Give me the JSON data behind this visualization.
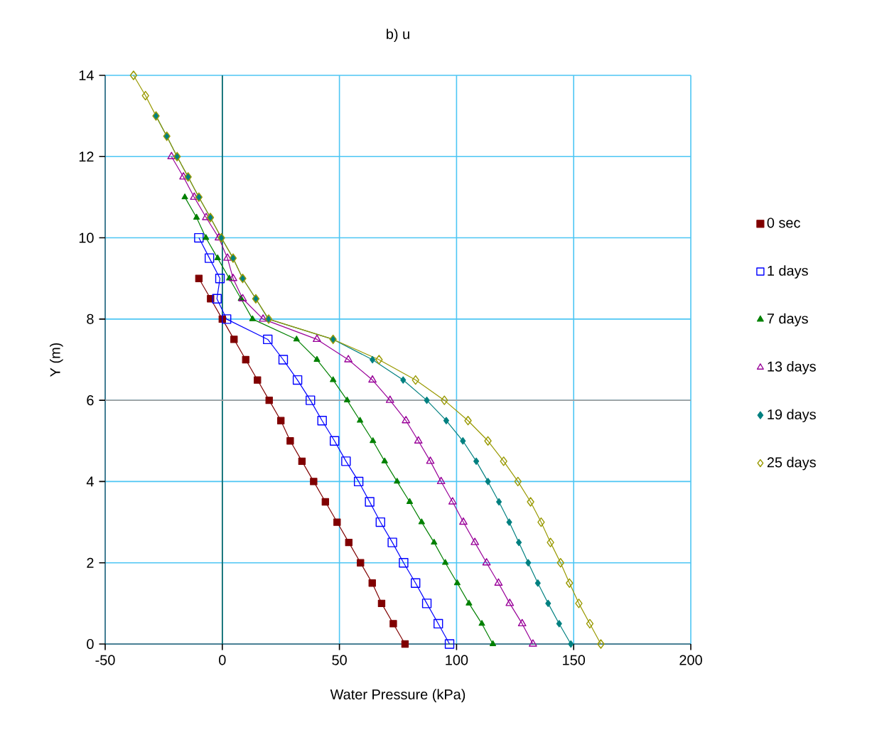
{
  "chart_data": {
    "type": "line",
    "title": "b) u",
    "xlabel": "Water Pressure (kPa)",
    "ylabel": "Y (m)",
    "xlim": [
      -50,
      200
    ],
    "xticks": [
      -50,
      0,
      50,
      100,
      150,
      200
    ],
    "ylim": [
      0,
      14
    ],
    "yticks": [
      0,
      2,
      4,
      6,
      8,
      10,
      12,
      14
    ],
    "grid": true,
    "legend": "right",
    "ref_lines": [
      {
        "axis": "x",
        "value": 0,
        "color": "#006060"
      },
      {
        "axis": "y",
        "value": 6,
        "color": "#a0a0a0"
      }
    ],
    "series": [
      {
        "name": "0 sec",
        "color": "#800000",
        "marker": "square",
        "x": [
          78,
          73,
          68,
          64,
          59,
          54,
          49,
          44,
          39,
          34,
          29,
          25,
          20,
          15,
          10,
          5,
          0,
          -5,
          -10
        ],
        "values": [
          0,
          0.5,
          1,
          1.5,
          2,
          2.5,
          3,
          3.5,
          4,
          4.5,
          5,
          5.5,
          6,
          6.5,
          7,
          7.5,
          8,
          8.5,
          9
        ]
      },
      {
        "name": "1 days",
        "color": "#0000ff",
        "marker": "square",
        "x": [
          97,
          92.2,
          87.3,
          82.5,
          77.4,
          72.6,
          67.5,
          62.9,
          58.2,
          52.8,
          47.9,
          42.6,
          37.6,
          32.1,
          26,
          19.4,
          1.8,
          -2.3,
          -1,
          -5.5,
          -10
        ],
        "values": [
          0,
          0.5,
          1,
          1.5,
          2,
          2.5,
          3,
          3.5,
          4,
          4.5,
          5,
          5.5,
          6,
          6.5,
          7,
          7.5,
          8,
          8.5,
          9,
          9.5,
          10
        ]
      },
      {
        "name": "7 days",
        "color": "#008000",
        "marker": "triangle",
        "x": [
          115.5,
          110.8,
          105.3,
          100.3,
          95.2,
          90.4,
          85.1,
          80,
          74.6,
          69.3,
          64.3,
          58.8,
          53.3,
          47.3,
          40.4,
          31.7,
          12.9,
          8,
          3,
          -2,
          -7,
          -11,
          -16
        ],
        "values": [
          0,
          0.5,
          1,
          1.5,
          2,
          2.5,
          3,
          3.5,
          4,
          4.5,
          5,
          5.5,
          6,
          6.5,
          7,
          7.5,
          8,
          8.5,
          9,
          9.5,
          10,
          10.5,
          11
        ]
      },
      {
        "name": "13 days",
        "color": "#990099",
        "marker": "triangle",
        "x": [
          132.6,
          128,
          122.7,
          117.9,
          112.8,
          107.8,
          102.9,
          98.3,
          93.4,
          88.8,
          83.7,
          78.4,
          71.6,
          64.1,
          53.8,
          40.4,
          17.4,
          8.7,
          4.6,
          2.2,
          -1.5,
          -6.9,
          -12,
          -16.6,
          -21.7
        ],
        "values": [
          0,
          0.5,
          1,
          1.5,
          2,
          2.5,
          3,
          3.5,
          4,
          4.5,
          5,
          5.5,
          6,
          6.5,
          7,
          7.5,
          8,
          8.5,
          9,
          9.5,
          10,
          10.5,
          11,
          11.5,
          12
        ]
      },
      {
        "name": "19 days",
        "color": "#008080",
        "marker": "diamond",
        "x": [
          148.8,
          143.8,
          139.1,
          134.7,
          130.6,
          126.6,
          122.5,
          118.1,
          113.4,
          108.4,
          102.7,
          95.6,
          87.3,
          77.2,
          64.1,
          47.3,
          19.6,
          14.3,
          8.7,
          4.6,
          -0.4,
          -5.1,
          -10,
          -14.6,
          -19.3,
          -23.7,
          -28.3
        ],
        "values": [
          0,
          0.5,
          1,
          1.5,
          2,
          2.5,
          3,
          3.5,
          4,
          4.5,
          5,
          5.5,
          6,
          6.5,
          7,
          7.5,
          8,
          8.5,
          9,
          9.5,
          10,
          10.5,
          11,
          11.5,
          12,
          12.5,
          13
        ]
      },
      {
        "name": "25 days",
        "color": "#999900",
        "marker": "diamond",
        "x": [
          161.6,
          156.9,
          152.2,
          148.2,
          144.4,
          140.1,
          136.1,
          131.6,
          126.2,
          120.1,
          113.4,
          104.9,
          94.8,
          82.5,
          66.9,
          47.3,
          19.8,
          14.3,
          8.7,
          4.6,
          -0.4,
          -5.1,
          -10,
          -14.6,
          -19.3,
          -23.7,
          -28.3,
          -32.8,
          -37.9
        ],
        "values": [
          0,
          0.5,
          1,
          1.5,
          2,
          2.5,
          3,
          3.5,
          4,
          4.5,
          5,
          5.5,
          6,
          6.5,
          7,
          7.5,
          8,
          8.5,
          9,
          9.5,
          10,
          10.5,
          11,
          11.5,
          12,
          12.5,
          13,
          13.5,
          14
        ]
      }
    ]
  }
}
